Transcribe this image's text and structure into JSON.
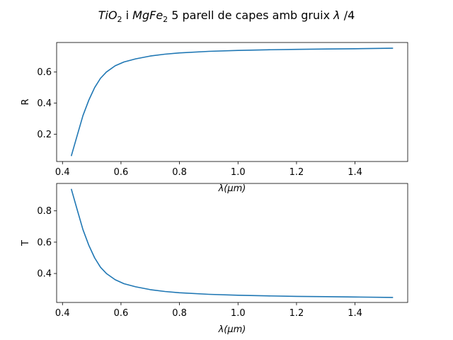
{
  "figure": {
    "title_parts": {
      "a": "TiO",
      "a_sub": "2",
      "b": " i ",
      "c": "MgFe",
      "c_sub": "2",
      "d": " 5 parell de capes amb gruix ",
      "e": "λ",
      "f": " /4"
    }
  },
  "chart_data": [
    {
      "type": "line",
      "ylabel": "R",
      "xlabel": "λ(μm)",
      "xlim": [
        0.38,
        1.58
      ],
      "ylim": [
        0.025,
        0.79
      ],
      "xticks": [
        0.4,
        0.6,
        0.8,
        1.0,
        1.2,
        1.4
      ],
      "xtick_labels": [
        "0.4",
        "0.6",
        "0.8",
        "1.0",
        "1.2",
        "1.4"
      ],
      "yticks": [
        0.2,
        0.4,
        0.6
      ],
      "ytick_labels": [
        "0.2",
        "0.4",
        "0.6"
      ],
      "color": "#1f77b4",
      "grid": false,
      "series": [
        {
          "x": [
            0.43,
            0.45,
            0.47,
            0.49,
            0.51,
            0.53,
            0.55,
            0.58,
            0.61,
            0.65,
            0.7,
            0.75,
            0.8,
            0.9,
            1.0,
            1.1,
            1.2,
            1.3,
            1.4,
            1.53
          ],
          "values": [
            0.06,
            0.19,
            0.32,
            0.42,
            0.5,
            0.56,
            0.6,
            0.64,
            0.665,
            0.685,
            0.703,
            0.715,
            0.723,
            0.733,
            0.739,
            0.743,
            0.746,
            0.748,
            0.75,
            0.753
          ]
        }
      ]
    },
    {
      "type": "line",
      "ylabel": "T",
      "xlabel": "λ(μm)",
      "xlim": [
        0.38,
        1.58
      ],
      "ylim": [
        0.215,
        0.975
      ],
      "xticks": [
        0.4,
        0.6,
        0.8,
        1.0,
        1.2,
        1.4
      ],
      "xtick_labels": [
        "0.4",
        "0.6",
        "0.8",
        "1.0",
        "1.2",
        "1.4"
      ],
      "yticks": [
        0.4,
        0.6,
        0.8
      ],
      "ytick_labels": [
        "0.4",
        "0.6",
        "0.8"
      ],
      "color": "#1f77b4",
      "grid": false,
      "series": [
        {
          "x": [
            0.43,
            0.45,
            0.47,
            0.49,
            0.51,
            0.53,
            0.55,
            0.58,
            0.61,
            0.65,
            0.7,
            0.75,
            0.8,
            0.9,
            1.0,
            1.1,
            1.2,
            1.3,
            1.4,
            1.53
          ],
          "values": [
            0.94,
            0.81,
            0.68,
            0.58,
            0.5,
            0.44,
            0.4,
            0.36,
            0.335,
            0.315,
            0.297,
            0.285,
            0.277,
            0.267,
            0.261,
            0.257,
            0.254,
            0.252,
            0.25,
            0.247
          ]
        }
      ]
    }
  ]
}
